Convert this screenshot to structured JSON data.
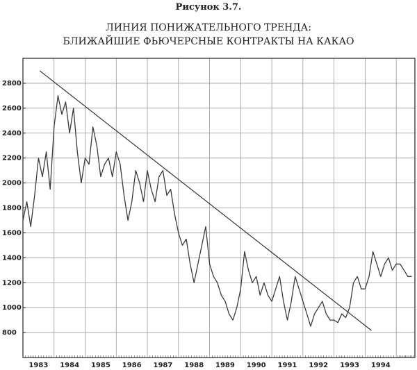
{
  "chart_data": {
    "type": "line",
    "figure_label": "Рисунок 3.7.",
    "title": [
      "ЛИНИЯ ПОНИЖАТЕЛЬНОГО ТРЕНДА:",
      "БЛИЖАЙШИЕ ФЬЮЧЕРСНЫЕ КОНТРАКТЫ НА КАКАО"
    ],
    "categories": [
      "1983",
      "1984",
      "1985",
      "1986",
      "1987",
      "1988",
      "1989",
      "1990",
      "1991",
      "1992",
      "1993",
      "1994"
    ],
    "x": [
      1983.0,
      1983.125,
      1983.25,
      1983.375,
      1983.5,
      1983.625,
      1983.75,
      1983.875,
      1984.0,
      1984.125,
      1984.25,
      1984.375,
      1984.5,
      1984.625,
      1984.75,
      1984.875,
      1985.0,
      1985.125,
      1985.25,
      1985.375,
      1985.5,
      1985.625,
      1985.75,
      1985.875,
      1986.0,
      1986.125,
      1986.25,
      1986.375,
      1986.5,
      1986.625,
      1986.75,
      1986.875,
      1987.0,
      1987.125,
      1987.25,
      1987.375,
      1987.5,
      1987.625,
      1987.75,
      1987.875,
      1988.0,
      1988.125,
      1988.25,
      1988.375,
      1988.5,
      1988.625,
      1988.75,
      1988.875,
      1989.0,
      1989.125,
      1989.25,
      1989.375,
      1989.5,
      1989.625,
      1989.75,
      1989.875,
      1990.0,
      1990.125,
      1990.25,
      1990.375,
      1990.5,
      1990.625,
      1990.75,
      1990.875,
      1991.0,
      1991.125,
      1991.25,
      1991.375,
      1991.5,
      1991.625,
      1991.75,
      1991.875,
      1992.0,
      1992.125,
      1992.25,
      1992.375,
      1992.5,
      1992.625,
      1992.75,
      1992.875,
      1993.0,
      1993.125,
      1993.25,
      1993.375,
      1993.5,
      1993.625,
      1993.75,
      1993.875,
      1994.0,
      1994.125,
      1994.25,
      1994.375,
      1994.5,
      1994.625,
      1994.75,
      1994.875,
      1995.0,
      1995.125,
      1995.25,
      1995.375,
      1995.5
    ],
    "values": [
      1700,
      1850,
      1650,
      1900,
      2200,
      2050,
      2250,
      1950,
      2450,
      2700,
      2550,
      2650,
      2400,
      2600,
      2250,
      2000,
      2200,
      2150,
      2450,
      2300,
      2050,
      2150,
      2200,
      2050,
      2250,
      2150,
      1900,
      1700,
      1850,
      2100,
      2000,
      1850,
      2100,
      1950,
      1850,
      2050,
      2100,
      1900,
      1950,
      1750,
      1600,
      1500,
      1550,
      1350,
      1200,
      1350,
      1500,
      1650,
      1350,
      1250,
      1200,
      1100,
      1050,
      950,
      900,
      1000,
      1150,
      1450,
      1300,
      1200,
      1250,
      1100,
      1200,
      1100,
      1050,
      1150,
      1250,
      1050,
      900,
      1050,
      1250,
      1150,
      1050,
      950,
      850,
      950,
      1000,
      1050,
      950,
      900,
      900,
      880,
      950,
      920,
      1000,
      1200,
      1250,
      1150,
      1150,
      1250,
      1450,
      1350,
      1250,
      1350,
      1400,
      1300,
      1350,
      1350,
      1300,
      1250,
      1250
    ],
    "color": "#3a3a3a",
    "trendline": {
      "x": [
        1983.54,
        1994.2
      ],
      "y": [
        2900,
        817
      ],
      "color": "#333333"
    },
    "xlim": [
      1983,
      1995.6
    ],
    "xticks": [
      1984,
      1985,
      1986,
      1987,
      1988,
      1989,
      1990,
      1991,
      1992,
      1993,
      1994,
      1995
    ],
    "ylim": [
      600,
      3000
    ],
    "yticks": [
      800,
      1000,
      1200,
      1400,
      1600,
      1800,
      2000,
      2200,
      2400,
      2600,
      2800
    ],
    "grid": true
  }
}
